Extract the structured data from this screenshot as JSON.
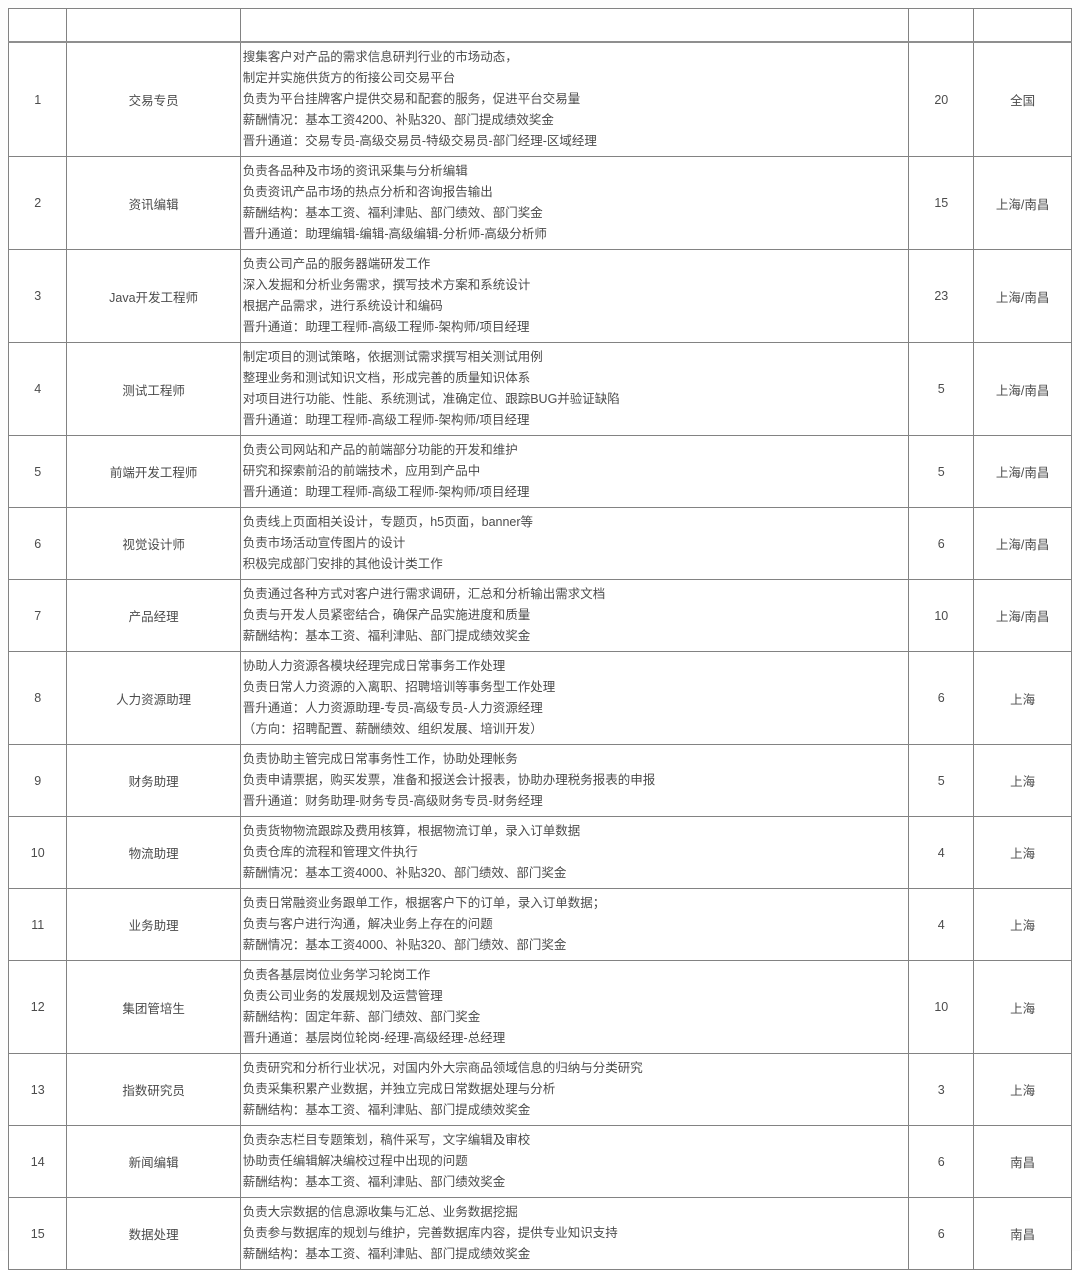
{
  "table": {
    "header": [
      "",
      "",
      "",
      "",
      ""
    ],
    "rows": [
      {
        "no": "1",
        "title": "交易专员",
        "desc": [
          "搜集客户对产品的需求信息研判行业的市场动态，",
          "制定并实施供货方的衔接公司交易平台",
          "负责为平台挂牌客户提供交易和配套的服务，促进平台交易量",
          "薪酬情况：基本工资4200、补贴320、部门提成绩效奖金",
          "晋升通道：交易专员-高级交易员-特级交易员-部门经理-区域经理"
        ],
        "count": "20",
        "location": "全国"
      },
      {
        "no": "2",
        "title": "资讯编辑",
        "desc": [
          "负责各品种及市场的资讯采集与分析编辑",
          "负责资讯产品市场的热点分析和咨询报告输出",
          "薪酬结构：基本工资、福利津贴、部门绩效、部门奖金",
          "晋升通道：助理编辑-编辑-高级编辑-分析师-高级分析师"
        ],
        "count": "15",
        "location": "上海/南昌"
      },
      {
        "no": "3",
        "title": "Java开发工程师",
        "desc": [
          "负责公司产品的服务器端研发工作",
          "深入发掘和分析业务需求，撰写技术方案和系统设计",
          "根据产品需求，进行系统设计和编码",
          "晋升通道：助理工程师-高级工程师-架构师/项目经理"
        ],
        "count": "23",
        "location": "上海/南昌"
      },
      {
        "no": "4",
        "title": "测试工程师",
        "desc": [
          "制定项目的测试策略，依据测试需求撰写相关测试用例",
          "整理业务和测试知识文档，形成完善的质量知识体系",
          "对项目进行功能、性能、系统测试，准确定位、跟踪BUG并验证缺陷",
          "晋升通道：助理工程师-高级工程师-架构师/项目经理"
        ],
        "count": "5",
        "location": "上海/南昌"
      },
      {
        "no": "5",
        "title": "前端开发工程师",
        "desc": [
          "负责公司网站和产品的前端部分功能的开发和维护",
          "研究和探索前沿的前端技术，应用到产品中",
          "晋升通道：助理工程师-高级工程师-架构师/项目经理"
        ],
        "count": "5",
        "location": "上海/南昌"
      },
      {
        "no": "6",
        "title": "视觉设计师",
        "desc": [
          "负责线上页面相关设计，专题页，h5页面，banner等",
          "负责市场活动宣传图片的设计",
          "积极完成部门安排的其他设计类工作"
        ],
        "count": "6",
        "location": "上海/南昌"
      },
      {
        "no": "7",
        "title": "产品经理",
        "desc": [
          "负责通过各种方式对客户进行需求调研，汇总和分析输出需求文档",
          "负责与开发人员紧密结合，确保产品实施进度和质量",
          "薪酬结构：基本工资、福利津贴、部门提成绩效奖金"
        ],
        "count": "10",
        "location": "上海/南昌"
      },
      {
        "no": "8",
        "title": "人力资源助理",
        "desc": [
          "协助人力资源各模块经理完成日常事务工作处理",
          "负责日常人力资源的入离职、招聘培训等事务型工作处理",
          "晋升通道：人力资源助理-专员-高级专员-人力资源经理",
          "（方向：招聘配置、薪酬绩效、组织发展、培训开发）"
        ],
        "count": "6",
        "location": "上海"
      },
      {
        "no": "9",
        "title": "财务助理",
        "desc": [
          "负责协助主管完成日常事务性工作，协助处理帐务",
          "负责申请票据，购买发票，准备和报送会计报表，协助办理税务报表的申报",
          "晋升通道：财务助理-财务专员-高级财务专员-财务经理"
        ],
        "count": "5",
        "location": "上海"
      },
      {
        "no": "10",
        "title": "物流助理",
        "desc": [
          "负责货物物流跟踪及费用核算，根据物流订单，录入订单数据",
          "负责仓库的流程和管理文件执行",
          "薪酬情况：基本工资4000、补贴320、部门绩效、部门奖金"
        ],
        "count": "4",
        "location": "上海"
      },
      {
        "no": "11",
        "title": "业务助理",
        "desc": [
          "负责日常融资业务跟单工作，根据客户下的订单，录入订单数据；",
          "负责与客户进行沟通，解决业务上存在的问题",
          "薪酬情况：基本工资4000、补贴320、部门绩效、部门奖金"
        ],
        "count": "4",
        "location": "上海"
      },
      {
        "no": "12",
        "title": "集团管培生",
        "desc": [
          "负责各基层岗位业务学习轮岗工作",
          "负责公司业务的发展规划及运营管理",
          "薪酬结构：固定年薪、部门绩效、部门奖金",
          "晋升通道：基层岗位轮岗-经理-高级经理-总经理"
        ],
        "count": "10",
        "location": "上海"
      },
      {
        "no": "13",
        "title": "指数研究员",
        "desc": [
          "负责研究和分析行业状况，对国内外大宗商品领域信息的归纳与分类研究",
          "负责采集积累产业数据，并独立完成日常数据处理与分析",
          "薪酬结构：基本工资、福利津贴、部门提成绩效奖金"
        ],
        "count": "3",
        "location": "上海"
      },
      {
        "no": "14",
        "title": "新闻编辑",
        "desc": [
          "负责杂志栏目专题策划，稿件采写，文字编辑及审校",
          "协助责任编辑解决编校过程中出现的问题",
          "薪酬结构：基本工资、福利津贴、部门绩效奖金"
        ],
        "count": "6",
        "location": "南昌"
      },
      {
        "no": "15",
        "title": "数据处理",
        "desc": [
          "负责大宗数据的信息源收集与汇总、业务数据挖掘",
          "负责参与数据库的规划与维护，完善数据库内容，提供专业知识支持",
          "薪酬结构：基本工资、福利津贴、部门提成绩效奖金"
        ],
        "count": "6",
        "location": "南昌"
      }
    ]
  }
}
